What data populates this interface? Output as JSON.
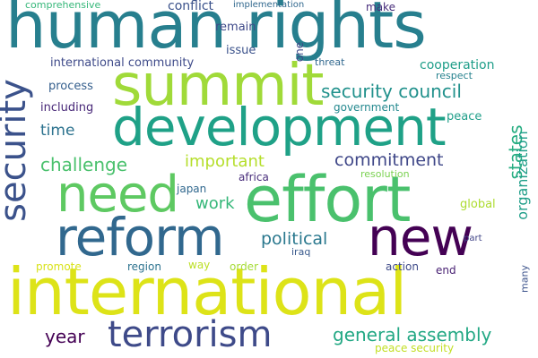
{
  "words": [
    {
      "text": "human rights",
      "color": "#277f8e"
    },
    {
      "text": "summit",
      "color": "#a0da39"
    },
    {
      "text": "development",
      "color": "#1fa187"
    },
    {
      "text": "need",
      "color": "#5ec962"
    },
    {
      "text": "effort",
      "color": "#4ac16d"
    },
    {
      "text": "new",
      "color": "#440154"
    },
    {
      "text": "reform",
      "color": "#31688e"
    },
    {
      "text": "security",
      "color": "#3b528b"
    },
    {
      "text": "international",
      "color": "#dde318"
    },
    {
      "text": "terrorism",
      "color": "#3e4a89"
    },
    {
      "text": "security council",
      "color": "#21918c"
    },
    {
      "text": "commitment",
      "color": "#3f4788"
    },
    {
      "text": "challenge",
      "color": "#4ac16d"
    },
    {
      "text": "important",
      "color": "#b5de2b"
    },
    {
      "text": "political",
      "color": "#2a788e"
    },
    {
      "text": "work",
      "color": "#35b779"
    },
    {
      "text": "general assembly",
      "color": "#22a884"
    },
    {
      "text": "year",
      "color": "#440154"
    },
    {
      "text": "states",
      "color": "#26ad81"
    },
    {
      "text": "organization",
      "color": "#1f9e89"
    },
    {
      "text": "time",
      "color": "#2c728e"
    },
    {
      "text": "conflict",
      "color": "#3b528b"
    },
    {
      "text": "comprehensive",
      "color": "#35b779"
    },
    {
      "text": "implementation",
      "color": "#31688e"
    },
    {
      "text": "make",
      "color": "#472d7b"
    },
    {
      "text": "remain",
      "color": "#3e4989"
    },
    {
      "text": "issue",
      "color": "#3b528b"
    },
    {
      "text": "one",
      "color": "#3e4989"
    },
    {
      "text": "threat",
      "color": "#31688e"
    },
    {
      "text": "international community",
      "color": "#3e4a89"
    },
    {
      "text": "cooperation",
      "color": "#1f9e89"
    },
    {
      "text": "respect",
      "color": "#26828e"
    },
    {
      "text": "process",
      "color": "#355f8d"
    },
    {
      "text": "including",
      "color": "#482878"
    },
    {
      "text": "government",
      "color": "#23888e"
    },
    {
      "text": "peace",
      "color": "#1f9e89"
    },
    {
      "text": "japan",
      "color": "#31688e"
    },
    {
      "text": "africa",
      "color": "#472c7a"
    },
    {
      "text": "resolution",
      "color": "#7ad151"
    },
    {
      "text": "global",
      "color": "#addc30"
    },
    {
      "text": "promote",
      "color": "#d8e219"
    },
    {
      "text": "region",
      "color": "#2c728e"
    },
    {
      "text": "way",
      "color": "#bddf26"
    },
    {
      "text": "order",
      "color": "#a5db36"
    },
    {
      "text": "iraq",
      "color": "#38598c"
    },
    {
      "text": "action",
      "color": "#3e4a89"
    },
    {
      "text": "end",
      "color": "#482173"
    },
    {
      "text": "part",
      "color": "#414487"
    },
    {
      "text": "many",
      "color": "#3b528b"
    },
    {
      "text": "peace security",
      "color": "#c2df23"
    }
  ]
}
